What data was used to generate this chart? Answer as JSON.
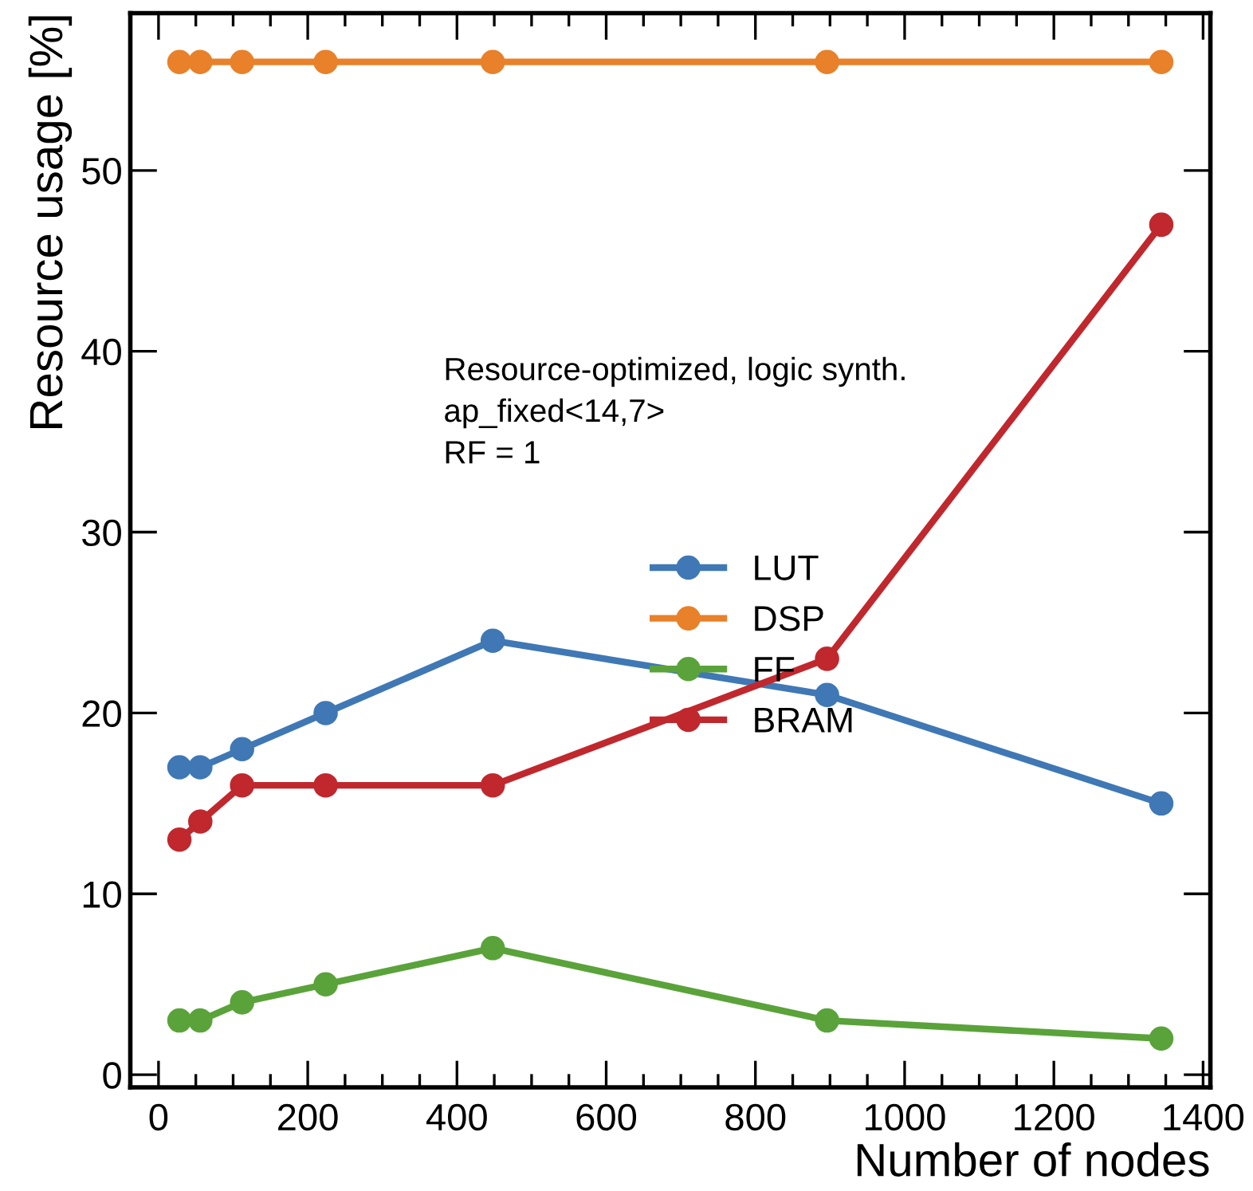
{
  "chart_data": {
    "type": "line",
    "xlabel": "Number of nodes",
    "ylabel": "Resource usage [%]",
    "annotations": [
      "Resource-optimized, logic synth.\nap_fixed<14,7>\nRF = 1"
    ],
    "x": [
      28,
      56,
      112,
      224,
      448,
      896,
      1344
    ],
    "series": [
      {
        "name": "LUT",
        "color": "#3f78b5",
        "values": [
          17,
          17,
          18,
          20,
          24,
          21,
          15
        ]
      },
      {
        "name": "DSP",
        "color": "#e8812a",
        "values": [
          56,
          56,
          56,
          56,
          56,
          56,
          56
        ]
      },
      {
        "name": "FF",
        "color": "#5aa33a",
        "values": [
          3,
          3,
          4,
          5,
          7,
          3,
          2
        ]
      },
      {
        "name": "BRAM",
        "color": "#c0282d",
        "values": [
          13,
          14,
          16,
          16,
          16,
          23,
          47
        ]
      }
    ],
    "xlim": [
      -37.8,
      1409.8
    ],
    "ylim": [
      -0.7,
      58.7
    ],
    "xticks": [
      0,
      200,
      400,
      600,
      800,
      1000,
      1200,
      1400
    ],
    "yticks": [
      0,
      10,
      20,
      30,
      40,
      50
    ],
    "marker": "circle",
    "line_style": "solid",
    "grid": false,
    "legend": "center right"
  }
}
